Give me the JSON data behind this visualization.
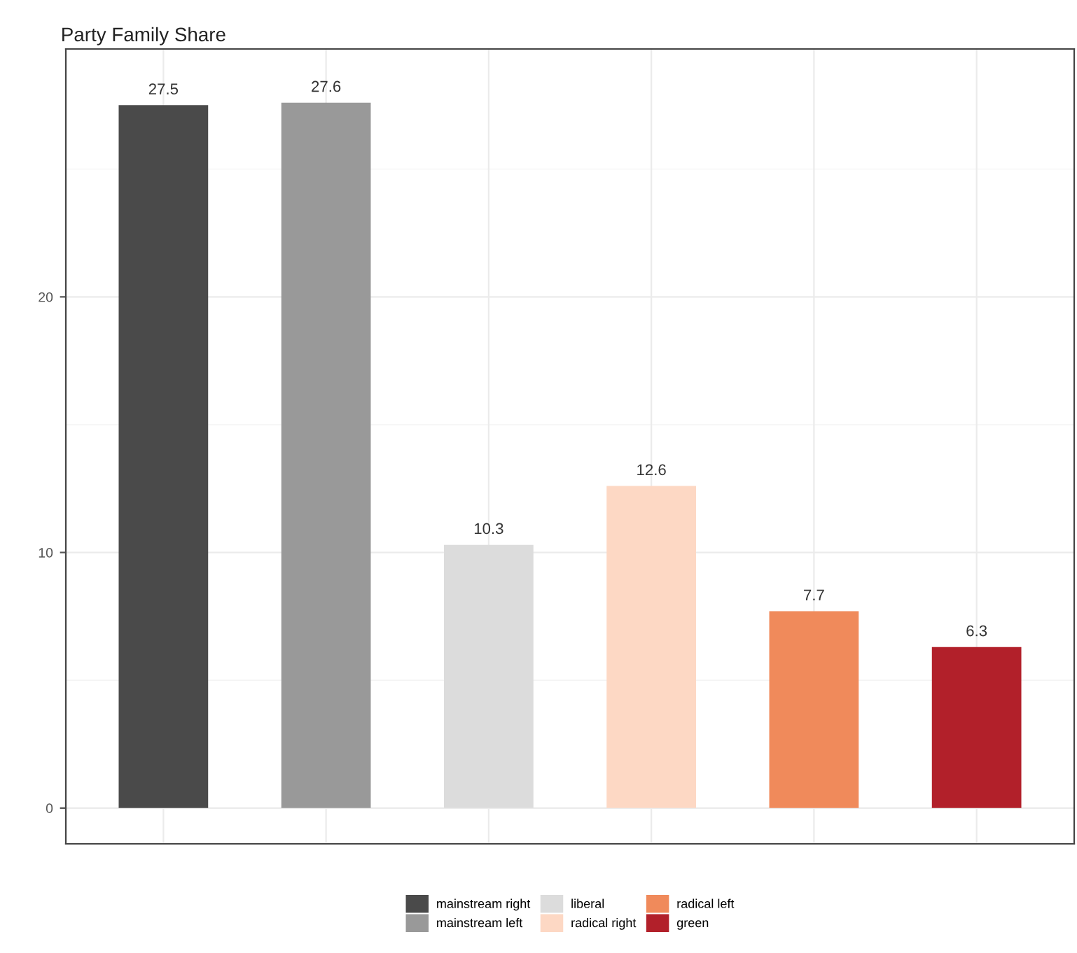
{
  "chart_data": {
    "type": "bar",
    "title": "Party Family Share",
    "categories": [
      null,
      null,
      null,
      null,
      null,
      null
    ],
    "series": [
      {
        "name": "mainstream right",
        "color": "#4a4a4a",
        "values": [
          27.5,
          null,
          null,
          null,
          null,
          null
        ]
      },
      {
        "name": "mainstream left",
        "color": "#999999",
        "values": [
          null,
          27.6,
          null,
          null,
          null,
          null
        ]
      },
      {
        "name": "liberal",
        "color": "#dcdcdc",
        "values": [
          null,
          null,
          10.3,
          null,
          null,
          null
        ]
      },
      {
        "name": "radical right",
        "color": "#fdd8c4",
        "values": [
          null,
          null,
          null,
          12.6,
          null,
          null
        ]
      },
      {
        "name": "radical left",
        "color": "#f08a5b",
        "values": [
          null,
          null,
          null,
          null,
          7.7,
          null
        ]
      },
      {
        "name": "green",
        "color": "#b2202a",
        "values": [
          null,
          null,
          null,
          null,
          null,
          6.3
        ]
      }
    ],
    "ylim": [
      -1.4,
      29.7
    ],
    "yticks": [
      0,
      10,
      20
    ],
    "grid": true,
    "legend": "bottom",
    "data_labels": true
  }
}
